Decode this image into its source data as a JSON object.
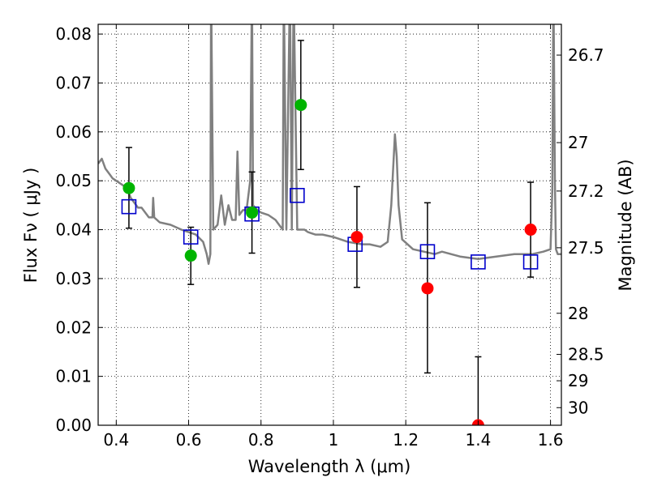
{
  "chart_data": {
    "type": "scatter",
    "xlabel": "Wavelength  λ (μm)",
    "ylabel": "Flux  Fν  ( μJy )",
    "y2label": "Magnitude (AB)",
    "xlim": [
      0.35,
      1.63
    ],
    "ylim": [
      0.0,
      0.082
    ],
    "grid": true,
    "x_ticks": [
      "0.4",
      "0.6",
      "0.8",
      "1",
      "1.2",
      "1.4",
      "1.6"
    ],
    "x_tick_values": [
      0.4,
      0.6,
      0.8,
      1.0,
      1.2,
      1.4,
      1.6
    ],
    "y_ticks": [
      "0.00",
      "0.01",
      "0.02",
      "0.03",
      "0.04",
      "0.05",
      "0.06",
      "0.07",
      "0.08"
    ],
    "y_tick_values": [
      0.0,
      0.01,
      0.02,
      0.03,
      0.04,
      0.05,
      0.06,
      0.07,
      0.08
    ],
    "y2_ticks": [
      {
        "label": "26.7",
        "flux": 0.0757
      },
      {
        "label": "27",
        "flux": 0.0578
      },
      {
        "label": "27.2",
        "flux": 0.0479
      },
      {
        "label": "27.5",
        "flux": 0.0363
      },
      {
        "label": "28",
        "flux": 0.0229
      },
      {
        "label": "28.5",
        "flux": 0.0145
      },
      {
        "label": "29",
        "flux": 0.0091
      },
      {
        "label": "30",
        "flux": 0.0036
      }
    ],
    "sed_model": {
      "color": "#808080",
      "points": [
        [
          0.35,
          0.0535
        ],
        [
          0.36,
          0.0545
        ],
        [
          0.37,
          0.0525
        ],
        [
          0.38,
          0.0515
        ],
        [
          0.39,
          0.0505
        ],
        [
          0.4,
          0.05
        ],
        [
          0.41,
          0.0495
        ],
        [
          0.42,
          0.049
        ],
        [
          0.43,
          0.0485
        ],
        [
          0.44,
          0.0465
        ],
        [
          0.45,
          0.0455
        ],
        [
          0.46,
          0.0445
        ],
        [
          0.47,
          0.0445
        ],
        [
          0.48,
          0.0435
        ],
        [
          0.49,
          0.0425
        ],
        [
          0.5,
          0.0425
        ],
        [
          0.502,
          0.0465
        ],
        [
          0.505,
          0.0425
        ],
        [
          0.52,
          0.0415
        ],
        [
          0.55,
          0.041
        ],
        [
          0.58,
          0.04
        ],
        [
          0.6,
          0.0395
        ],
        [
          0.62,
          0.039
        ],
        [
          0.64,
          0.0375
        ],
        [
          0.65,
          0.035
        ],
        [
          0.655,
          0.033
        ],
        [
          0.66,
          0.035
        ],
        [
          0.662,
          0.09
        ],
        [
          0.668,
          0.04
        ],
        [
          0.68,
          0.041
        ],
        [
          0.69,
          0.047
        ],
        [
          0.7,
          0.041
        ],
        [
          0.71,
          0.045
        ],
        [
          0.72,
          0.042
        ],
        [
          0.73,
          0.042
        ],
        [
          0.735,
          0.056
        ],
        [
          0.74,
          0.043
        ],
        [
          0.75,
          0.044
        ],
        [
          0.76,
          0.044
        ],
        [
          0.77,
          0.05
        ],
        [
          0.775,
          0.09
        ],
        [
          0.778,
          0.045
        ],
        [
          0.79,
          0.044
        ],
        [
          0.8,
          0.0435
        ],
        [
          0.82,
          0.043
        ],
        [
          0.84,
          0.042
        ],
        [
          0.85,
          0.041
        ],
        [
          0.86,
          0.04
        ],
        [
          0.863,
          0.09
        ],
        [
          0.87,
          0.04
        ],
        [
          0.88,
          0.09
        ],
        [
          0.885,
          0.04
        ],
        [
          0.89,
          0.09
        ],
        [
          0.9,
          0.04
        ],
        [
          0.92,
          0.04
        ],
        [
          0.93,
          0.0395
        ],
        [
          0.95,
          0.039
        ],
        [
          0.97,
          0.039
        ],
        [
          1.0,
          0.0385
        ],
        [
          1.04,
          0.0375
        ],
        [
          1.08,
          0.037
        ],
        [
          1.1,
          0.037
        ],
        [
          1.13,
          0.0365
        ],
        [
          1.15,
          0.0375
        ],
        [
          1.16,
          0.045
        ],
        [
          1.17,
          0.0595
        ],
        [
          1.175,
          0.055
        ],
        [
          1.18,
          0.045
        ],
        [
          1.19,
          0.038
        ],
        [
          1.22,
          0.036
        ],
        [
          1.25,
          0.0355
        ],
        [
          1.28,
          0.035
        ],
        [
          1.3,
          0.0355
        ],
        [
          1.35,
          0.0345
        ],
        [
          1.4,
          0.034
        ],
        [
          1.45,
          0.0345
        ],
        [
          1.5,
          0.035
        ],
        [
          1.55,
          0.035
        ],
        [
          1.58,
          0.0355
        ],
        [
          1.6,
          0.036
        ],
        [
          1.605,
          0.048
        ],
        [
          1.608,
          0.09
        ],
        [
          1.612,
          0.05
        ],
        [
          1.615,
          0.036
        ],
        [
          1.62,
          0.035
        ],
        [
          1.63,
          0.035
        ]
      ]
    },
    "model_photometry": {
      "marker": "open-square",
      "color": "#0000cc",
      "points": [
        {
          "x": 0.435,
          "y": 0.0447
        },
        {
          "x": 0.606,
          "y": 0.0385
        },
        {
          "x": 0.775,
          "y": 0.0432
        },
        {
          "x": 0.9,
          "y": 0.047
        },
        {
          "x": 1.06,
          "y": 0.037
        },
        {
          "x": 1.26,
          "y": 0.0355
        },
        {
          "x": 1.4,
          "y": 0.0334
        },
        {
          "x": 1.545,
          "y": 0.0334
        }
      ]
    },
    "observed_optical": {
      "marker": "filled-circle",
      "color": "#00b400",
      "points": [
        {
          "x": 0.435,
          "y": 0.0485,
          "ylo": 0.0403,
          "yhi": 0.0568
        },
        {
          "x": 0.606,
          "y": 0.0347,
          "ylo": 0.0288,
          "yhi": 0.0405
        },
        {
          "x": 0.775,
          "y": 0.0435,
          "ylo": 0.0352,
          "yhi": 0.0518
        },
        {
          "x": 0.91,
          "y": 0.0655,
          "ylo": 0.0523,
          "yhi": 0.0787
        }
      ]
    },
    "observed_nir": {
      "marker": "filled-circle",
      "color": "#ff0000",
      "points": [
        {
          "x": 1.065,
          "y": 0.0385,
          "ylo": 0.0282,
          "yhi": 0.0488
        },
        {
          "x": 1.26,
          "y": 0.028,
          "ylo": 0.0107,
          "yhi": 0.0455
        },
        {
          "x": 1.4,
          "y": 0.0,
          "ylo": 0.0,
          "yhi": 0.014
        },
        {
          "x": 1.545,
          "y": 0.04,
          "ylo": 0.0303,
          "yhi": 0.0497
        }
      ]
    }
  }
}
